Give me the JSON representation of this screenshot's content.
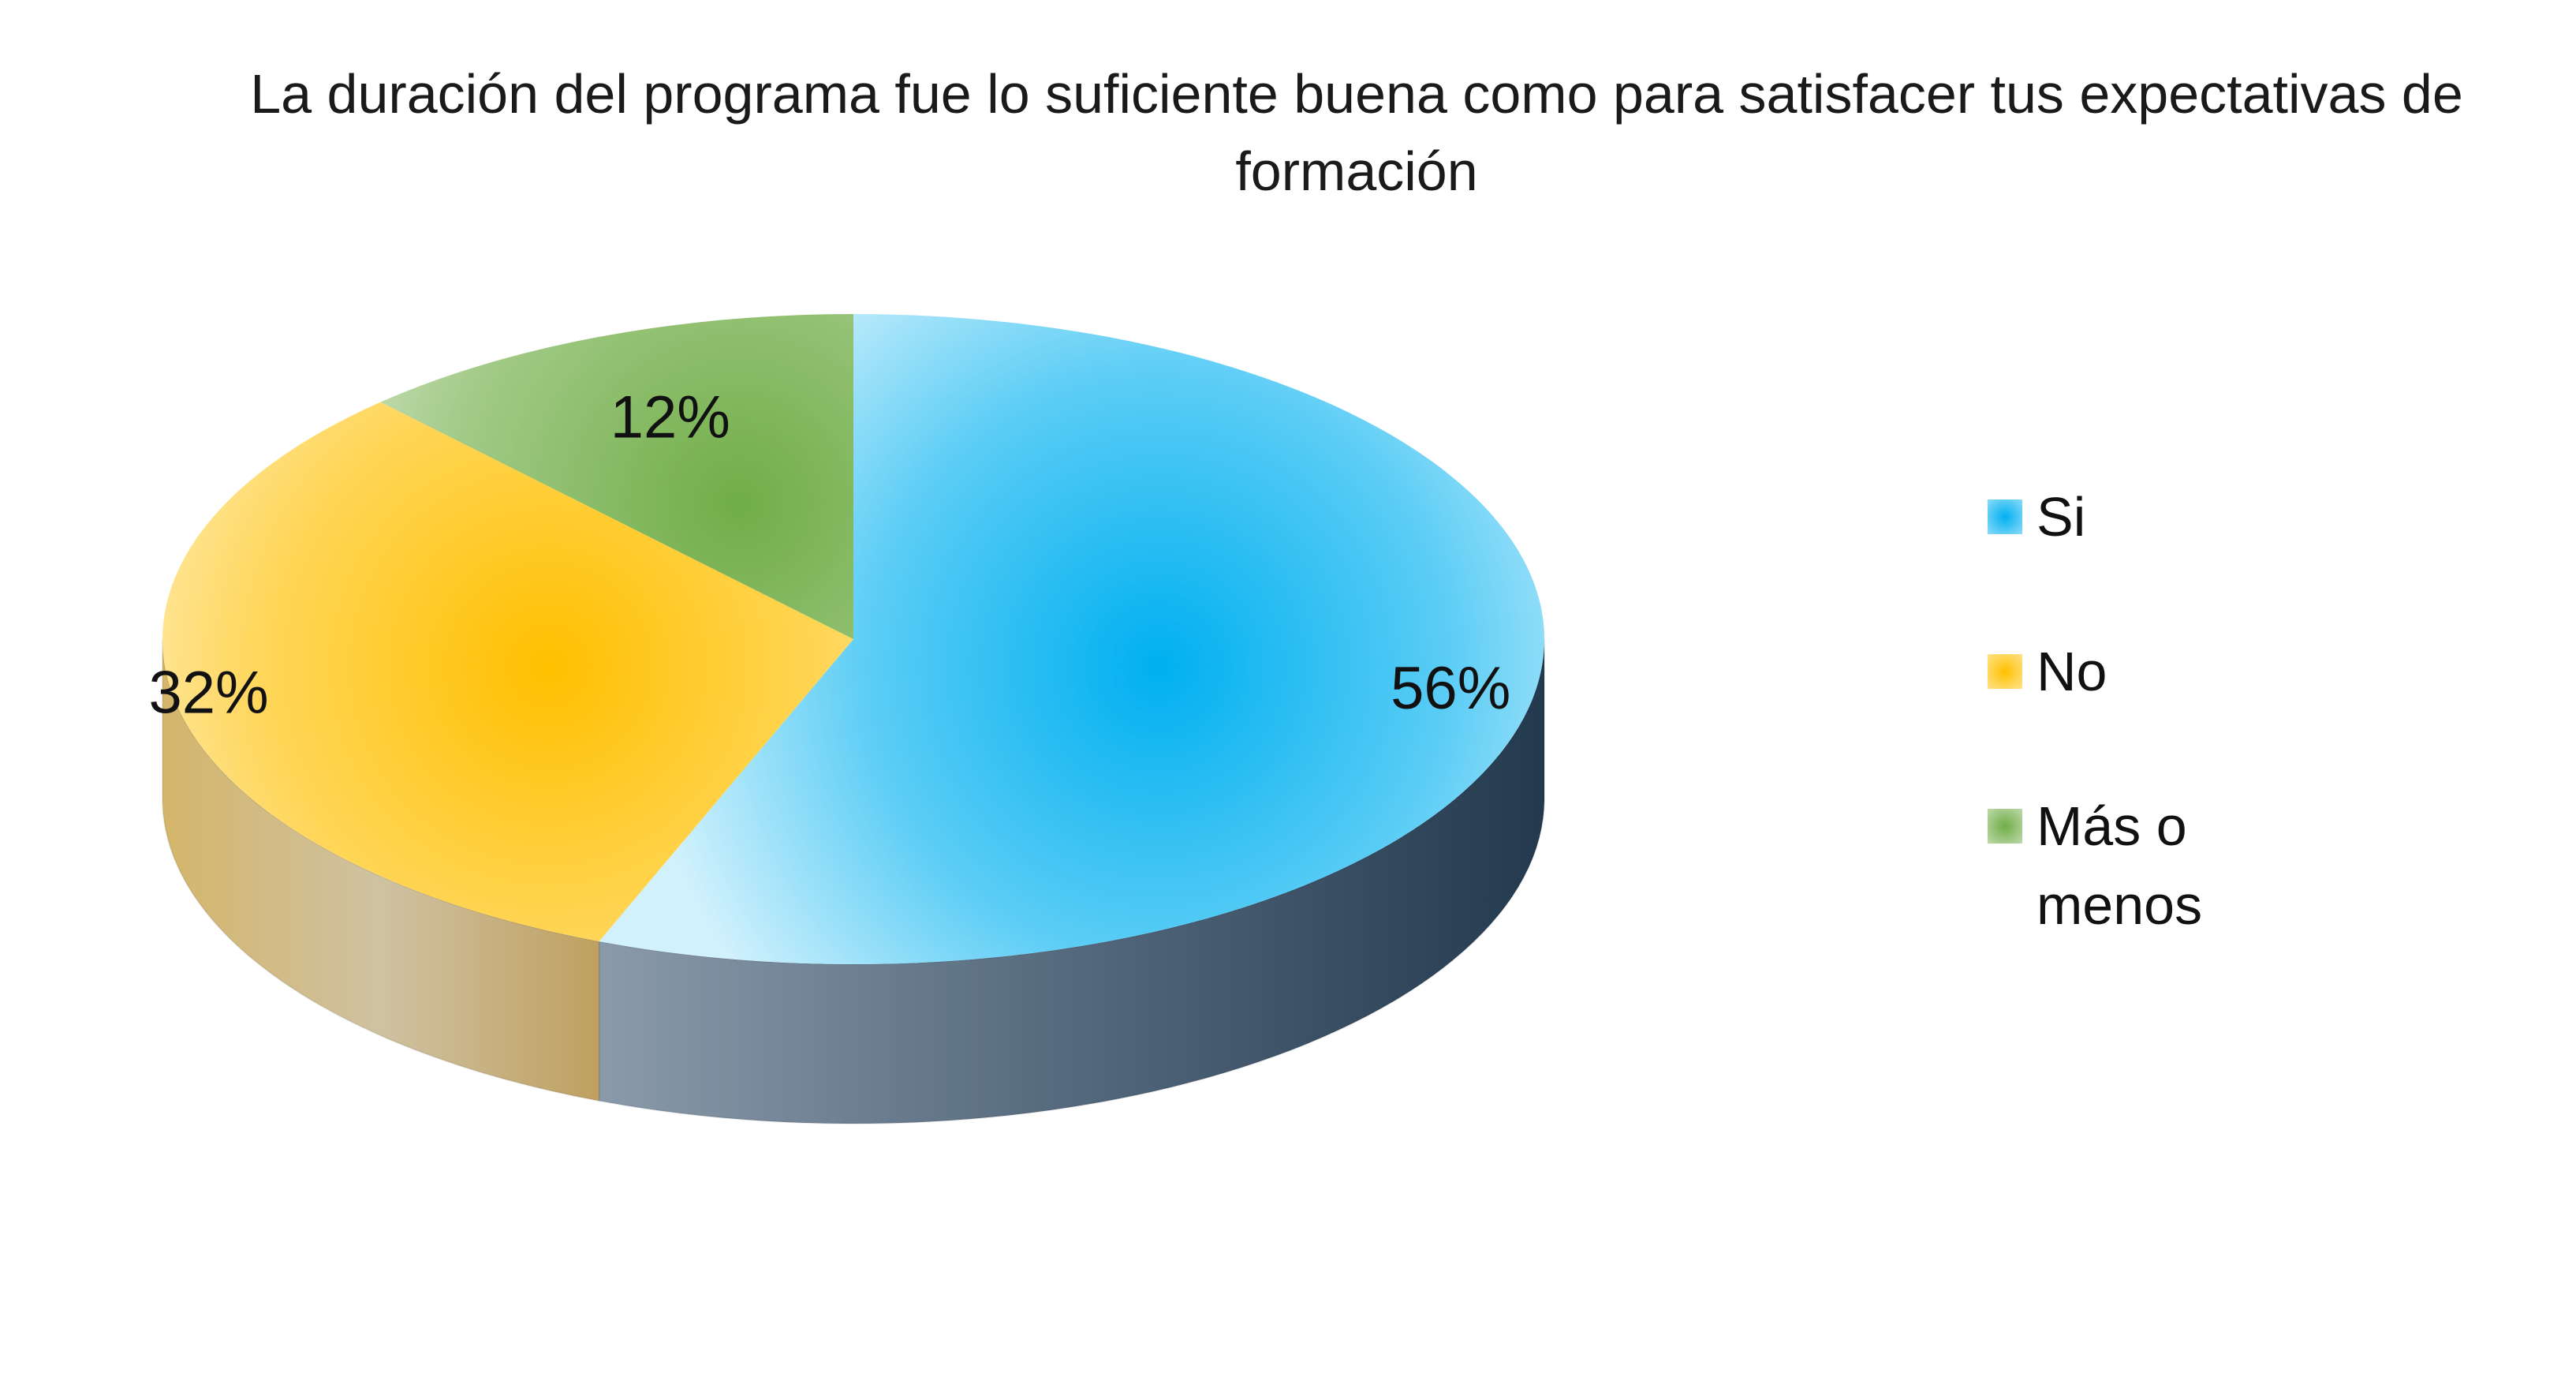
{
  "chart_data": {
    "type": "pie",
    "title": "La duración del programa fue lo suficiente buena como para satisfacer tus expectativas de formación",
    "categories": [
      "Si",
      "No",
      "Más o menos"
    ],
    "values": [
      56,
      32,
      12
    ],
    "labels": [
      "56%",
      "32%",
      "12%"
    ],
    "colors": [
      "#00b0f0",
      "#ffc000",
      "#70ad47"
    ],
    "legend_position": "right",
    "style": "3d"
  }
}
